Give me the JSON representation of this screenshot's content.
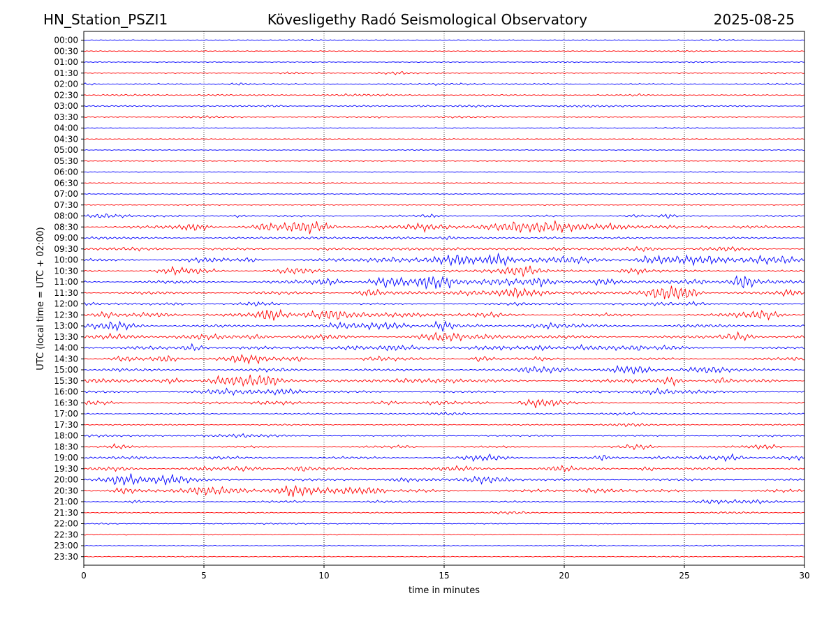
{
  "chart_data": {
    "type": "line",
    "title_left": "HN_Station_PSZI1",
    "title": "Kövesligethy Radó Seismological Observatory",
    "title_right": "2025-08-25",
    "xlabel": "time in minutes",
    "ylabel": "UTC (local time = UTC + 02:00)",
    "xlim": [
      0,
      30
    ],
    "x_ticks": [
      "0",
      "5",
      "10",
      "15",
      "20",
      "25",
      "30"
    ],
    "grid": "vertical dotted at each 5 minutes",
    "colors": {
      "even_trace": "#0000ff",
      "odd_trace": "#ff0000",
      "grid": "#000000"
    },
    "traces": [
      {
        "label": "00:00",
        "activity": 0.08,
        "color": "blue"
      },
      {
        "label": "00:30",
        "activity": 0.06,
        "color": "red"
      },
      {
        "label": "01:00",
        "activity": 0.07,
        "color": "blue"
      },
      {
        "label": "01:30",
        "activity": 0.14,
        "color": "red"
      },
      {
        "label": "02:00",
        "activity": 0.22,
        "color": "blue"
      },
      {
        "label": "02:30",
        "activity": 0.2,
        "color": "red"
      },
      {
        "label": "03:00",
        "activity": 0.25,
        "color": "blue"
      },
      {
        "label": "03:30",
        "activity": 0.15,
        "color": "red"
      },
      {
        "label": "04:00",
        "activity": 0.08,
        "color": "blue"
      },
      {
        "label": "04:30",
        "activity": 0.04,
        "color": "red"
      },
      {
        "label": "05:00",
        "activity": 0.06,
        "color": "blue"
      },
      {
        "label": "05:30",
        "activity": 0.06,
        "color": "red"
      },
      {
        "label": "06:00",
        "activity": 0.04,
        "color": "blue"
      },
      {
        "label": "06:30",
        "activity": 0.04,
        "color": "red"
      },
      {
        "label": "07:00",
        "activity": 0.05,
        "color": "blue"
      },
      {
        "label": "07:30",
        "activity": 0.05,
        "color": "red"
      },
      {
        "label": "08:00",
        "activity": 0.35,
        "color": "blue"
      },
      {
        "label": "08:30",
        "activity": 0.65,
        "color": "red"
      },
      {
        "label": "09:00",
        "activity": 0.35,
        "color": "blue"
      },
      {
        "label": "09:30",
        "activity": 0.45,
        "color": "red"
      },
      {
        "label": "10:00",
        "activity": 0.75,
        "color": "blue"
      },
      {
        "label": "10:30",
        "activity": 0.45,
        "color": "red"
      },
      {
        "label": "11:00",
        "activity": 0.8,
        "color": "blue"
      },
      {
        "label": "11:30",
        "activity": 0.7,
        "color": "red"
      },
      {
        "label": "12:00",
        "activity": 0.35,
        "color": "blue"
      },
      {
        "label": "12:30",
        "activity": 0.75,
        "color": "red"
      },
      {
        "label": "13:00",
        "activity": 0.7,
        "color": "blue"
      },
      {
        "label": "13:30",
        "activity": 0.7,
        "color": "red"
      },
      {
        "label": "14:00",
        "activity": 0.55,
        "color": "blue"
      },
      {
        "label": "14:30",
        "activity": 0.55,
        "color": "red"
      },
      {
        "label": "15:00",
        "activity": 0.55,
        "color": "blue"
      },
      {
        "label": "15:30",
        "activity": 0.7,
        "color": "red"
      },
      {
        "label": "16:00",
        "activity": 0.5,
        "color": "blue"
      },
      {
        "label": "16:30",
        "activity": 0.45,
        "color": "red"
      },
      {
        "label": "17:00",
        "activity": 0.25,
        "color": "blue"
      },
      {
        "label": "17:30",
        "activity": 0.2,
        "color": "red"
      },
      {
        "label": "18:00",
        "activity": 0.25,
        "color": "blue"
      },
      {
        "label": "18:30",
        "activity": 0.4,
        "color": "red"
      },
      {
        "label": "19:00",
        "activity": 0.5,
        "color": "blue"
      },
      {
        "label": "19:30",
        "activity": 0.55,
        "color": "red"
      },
      {
        "label": "20:00",
        "activity": 0.5,
        "color": "blue"
      },
      {
        "label": "20:30",
        "activity": 0.65,
        "color": "red"
      },
      {
        "label": "21:00",
        "activity": 0.3,
        "color": "blue"
      },
      {
        "label": "21:30",
        "activity": 0.15,
        "color": "red"
      },
      {
        "label": "22:00",
        "activity": 0.1,
        "color": "blue"
      },
      {
        "label": "22:30",
        "activity": 0.06,
        "color": "red"
      },
      {
        "label": "23:00",
        "activity": 0.06,
        "color": "blue"
      },
      {
        "label": "23:30",
        "activity": 0.05,
        "color": "red"
      }
    ]
  }
}
